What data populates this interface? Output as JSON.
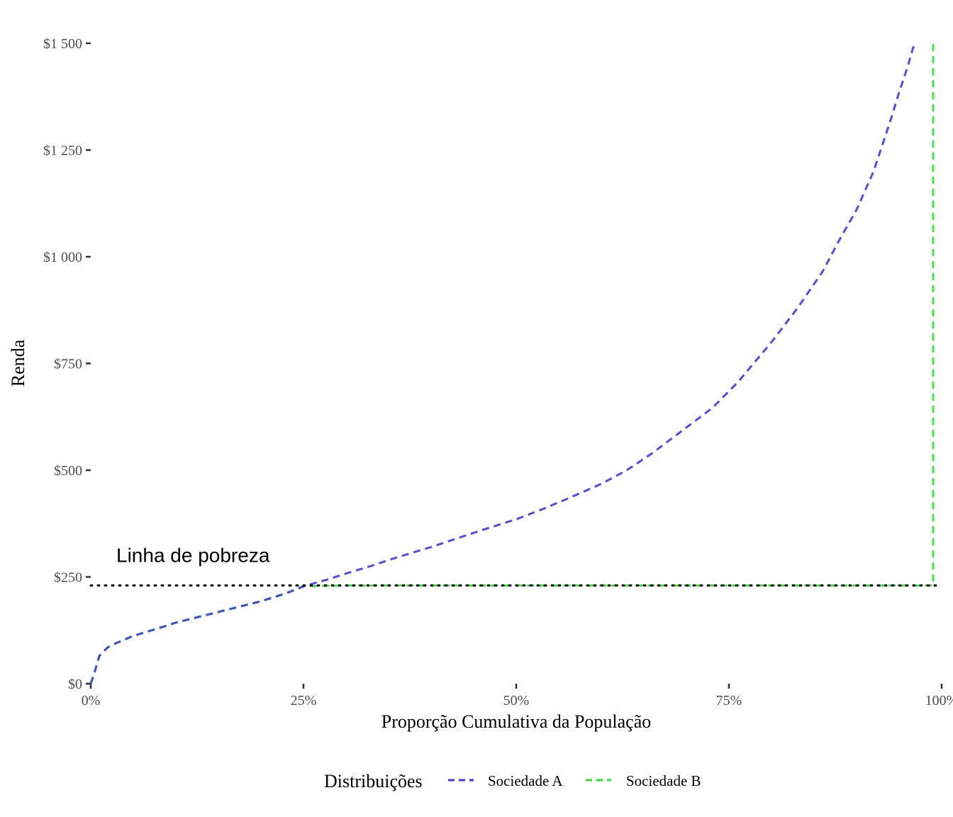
{
  "chart_data": {
    "type": "line",
    "xlabel": "Proporção Cumulativa da População",
    "ylabel": "Renda",
    "xlim": [
      0,
      1
    ],
    "ylim": [
      0,
      1500
    ],
    "x_ticks": [
      0,
      0.25,
      0.5,
      0.75,
      1
    ],
    "x_tick_labels": [
      "0%",
      "25%",
      "50%",
      "75%",
      "100%"
    ],
    "y_ticks": [
      0,
      250,
      500,
      750,
      1000,
      1250,
      1500
    ],
    "y_tick_labels": [
      "$0",
      "$250",
      "$500",
      "$750",
      "$1 000",
      "$1 250",
      "$1 500"
    ],
    "grid": false,
    "legend": {
      "title": "Distribuições",
      "position": "bottom",
      "entries": [
        "Sociedade A",
        "Sociedade B"
      ]
    },
    "annotation": {
      "text": "Linha de pobreza",
      "x": 0.03,
      "y": 285
    },
    "poverty_line": 230,
    "series": [
      {
        "name": "Sociedade A",
        "color": "#3b3be8",
        "linestyle": "dashed",
        "x": [
          0,
          0.005,
          0.01,
          0.02,
          0.03,
          0.05,
          0.08,
          0.1,
          0.13,
          0.16,
          0.2,
          0.23,
          0.25,
          0.28,
          0.3,
          0.33,
          0.36,
          0.4,
          0.43,
          0.46,
          0.5,
          0.53,
          0.56,
          0.6,
          0.63,
          0.66,
          0.7,
          0.73,
          0.76,
          0.8,
          0.83,
          0.86,
          0.88,
          0.9,
          0.92,
          0.94,
          0.95,
          0.96,
          0.968
        ],
        "y": [
          0,
          30,
          65,
          85,
          95,
          112,
          130,
          143,
          158,
          173,
          193,
          212,
          228,
          245,
          258,
          276,
          296,
          320,
          340,
          360,
          385,
          408,
          433,
          468,
          500,
          540,
          600,
          645,
          705,
          800,
          878,
          965,
          1040,
          1110,
          1200,
          1320,
          1385,
          1445,
          1500
        ]
      },
      {
        "name": "Sociedade B",
        "color": "#29e629",
        "linestyle": "dashed",
        "x": [
          0,
          0.005,
          0.01,
          0.02,
          0.03,
          0.05,
          0.08,
          0.1,
          0.13,
          0.16,
          0.2,
          0.23,
          0.25,
          0.3,
          0.5,
          0.75,
          0.99,
          0.99
        ],
        "y": [
          0,
          30,
          65,
          85,
          95,
          112,
          130,
          143,
          158,
          173,
          193,
          212,
          228,
          230,
          230,
          230,
          230,
          1500
        ]
      }
    ]
  }
}
